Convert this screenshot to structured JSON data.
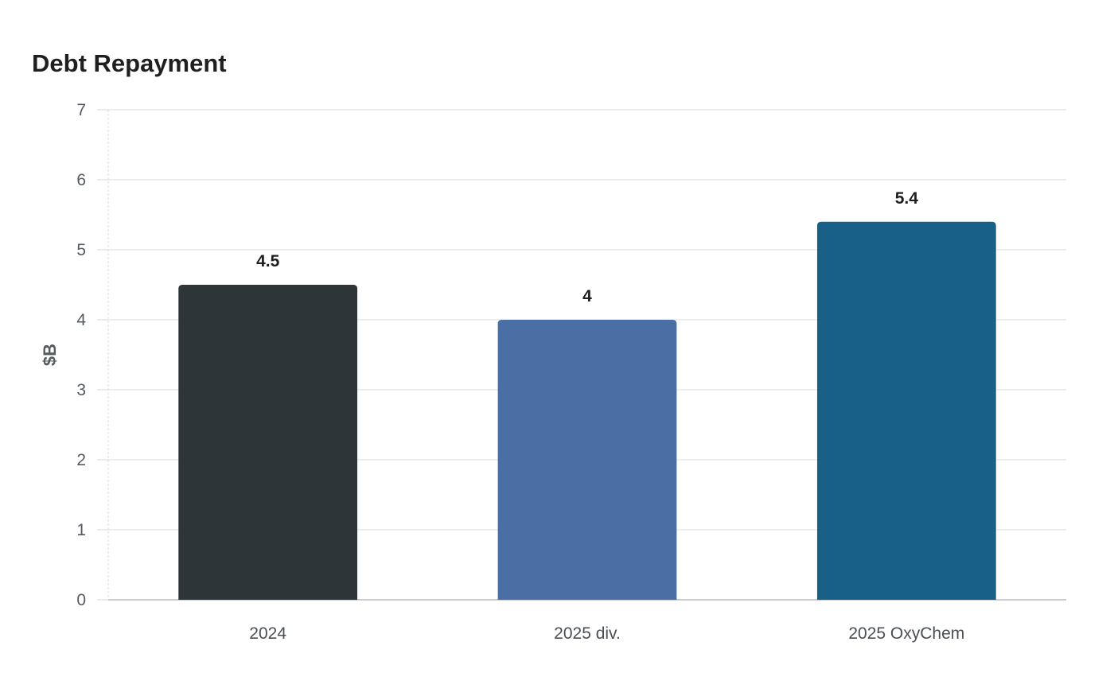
{
  "chart_data": {
    "type": "bar",
    "title": "Debt Repayment",
    "xlabel": "",
    "ylabel": "$B",
    "ylim": [
      0,
      7
    ],
    "yticks": [
      0,
      1,
      2,
      3,
      4,
      5,
      6,
      7
    ],
    "grid": true,
    "categories": [
      "2024",
      "2025 div.",
      "2025 OxyChem"
    ],
    "values": [
      4.5,
      4,
      5.4
    ],
    "data_labels": [
      "4.5",
      "4",
      "5.4"
    ],
    "colors": [
      "#2e3538",
      "#4a6fa5",
      "#186088"
    ]
  }
}
